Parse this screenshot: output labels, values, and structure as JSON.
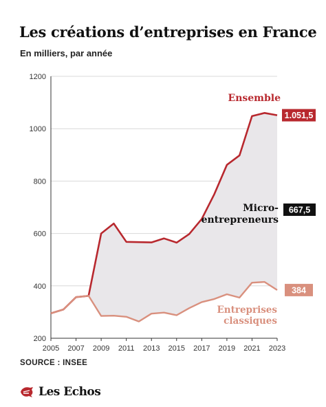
{
  "header": {
    "title": "Les créations d’entreprises en France",
    "subtitle": "En milliers, par année"
  },
  "footer": {
    "source": "SOURCE : INSEE",
    "logo_text": "Les Echos"
  },
  "colors": {
    "ensemble": "#b8282e",
    "classiques": "#d9907e",
    "micro_fill": "#e9e7ea",
    "micro_label": "#111111",
    "axis": "#333333",
    "grid": "#d8d8d8"
  },
  "chart_data": {
    "type": "line",
    "xlabel": "",
    "ylabel": "",
    "ylim": [
      200,
      1200
    ],
    "xlim": [
      2005,
      2023
    ],
    "y_ticks": [
      200,
      400,
      600,
      800,
      1000,
      1200
    ],
    "x_ticks": [
      2005,
      2007,
      2009,
      2011,
      2013,
      2015,
      2017,
      2019,
      2021,
      2023
    ],
    "grid": "horizontal",
    "x": [
      2005,
      2006,
      2007,
      2008,
      2009,
      2010,
      2011,
      2012,
      2013,
      2014,
      2015,
      2016,
      2017,
      2018,
      2019,
      2020,
      2021,
      2022,
      2023
    ],
    "series": [
      {
        "name": "Ensemble",
        "values": [
          295,
          310,
          357,
          362,
          600,
          638,
          568,
          567,
          566,
          581,
          565,
          598,
          655,
          750,
          862,
          898,
          1048,
          1060,
          1051.5
        ],
        "end_label": "1.051,5"
      },
      {
        "name": "Entreprises classiques",
        "values": [
          295,
          310,
          357,
          362,
          285,
          286,
          282,
          264,
          294,
          298,
          288,
          315,
          338,
          350,
          368,
          355,
          412,
          415,
          384
        ],
        "end_label": "384"
      }
    ],
    "annotations": [
      {
        "text": "Micro-entrepreneurs",
        "lines": [
          "Micro-",
          "entrepreneurs"
        ],
        "end_label": "667,5"
      }
    ]
  }
}
